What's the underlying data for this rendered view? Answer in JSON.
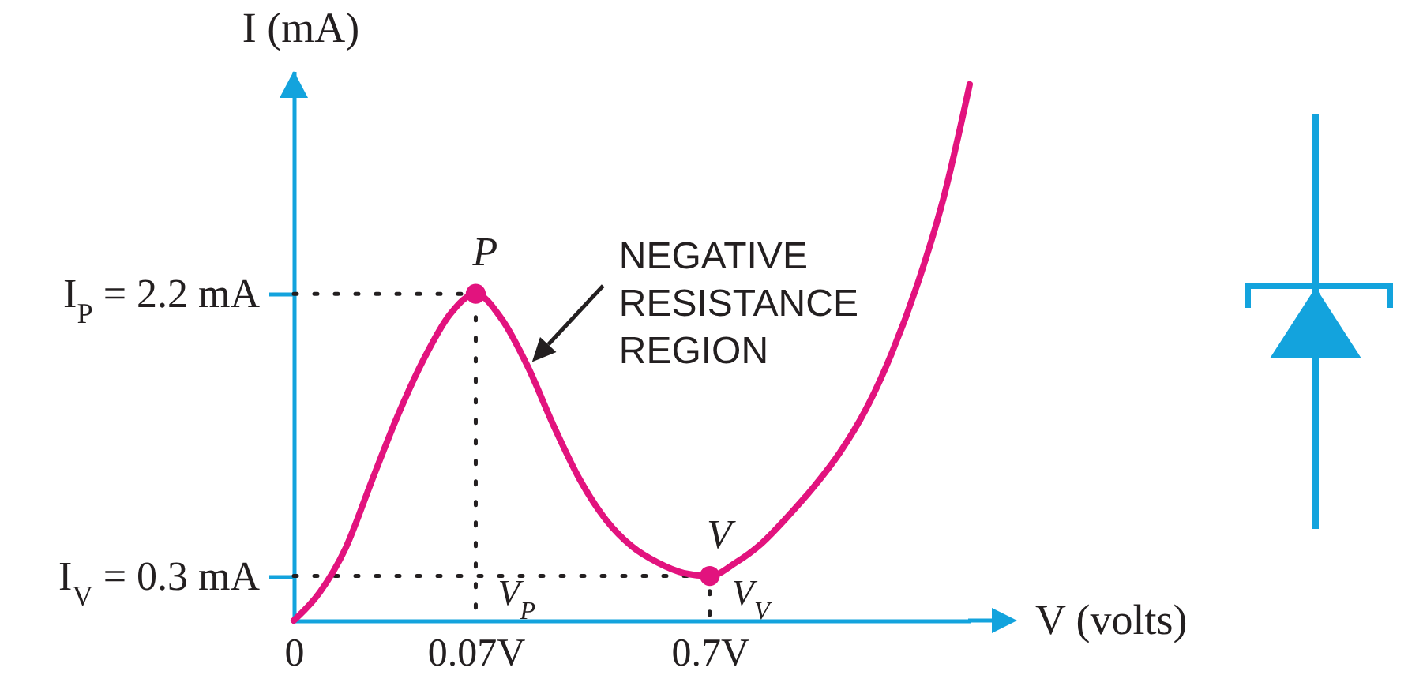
{
  "chart_data": {
    "type": "line",
    "xlabel": "V (volts)",
    "ylabel": "I (mA)",
    "categories": [
      "0",
      null,
      null,
      null,
      null,
      null,
      null,
      "0.07V",
      null,
      null,
      null,
      null,
      null,
      null,
      null,
      null,
      "0.7V",
      null,
      null,
      null,
      null,
      null,
      null,
      null,
      null,
      null,
      null
    ],
    "ylim": [
      0,
      3.7
    ],
    "yticks": [
      {
        "value": 0.3,
        "label": "I$_{V}$ = 0.3 mA"
      },
      {
        "value": 2.2,
        "label": "I$_{P}$ = 2.2 mA"
      }
    ],
    "series": [
      {
        "type": "line",
        "color": "#231f20",
        "line_style": "dotted",
        "x": [
          "0",
          "0.07V",
          "0.07V"
        ],
        "values": [
          2.2,
          2.2,
          0
        ]
      },
      {
        "type": "line",
        "color": "#231f20",
        "line_style": "dotted",
        "x": [
          "0",
          "0.7V",
          "0.7V"
        ],
        "values": [
          0.3,
          0.3,
          0
        ]
      },
      {
        "type": "line",
        "color": "#e2137e",
        "values": [
          0,
          0.19,
          0.49,
          0.94,
          1.38,
          1.76,
          2.06,
          2.2,
          2.03,
          1.71,
          1.31,
          0.95,
          0.68,
          0.5,
          0.39,
          0.32,
          0.3,
          0.39,
          0.52,
          0.7,
          0.9,
          1.13,
          1.42,
          1.8,
          2.27,
          2.85,
          3.61
        ]
      },
      {
        "type": "scatter",
        "color": "#e2137e",
        "marker": "circle",
        "x": [
          "0.07V",
          "0.7V"
        ],
        "values": [
          2.2,
          0.3
        ]
      }
    ],
    "annotations": [
      {
        "text": "P",
        "x": "0.07V",
        "y": 2.2
      },
      {
        "text": "V",
        "x": "0.7V",
        "y": 0.3
      },
      {
        "text": "V$_{P}$",
        "x": "0.07V"
      },
      {
        "text": "V$_{V}$",
        "x": "0.7V"
      },
      "NEGATIVE RESISTANCE REGION"
    ]
  }
}
